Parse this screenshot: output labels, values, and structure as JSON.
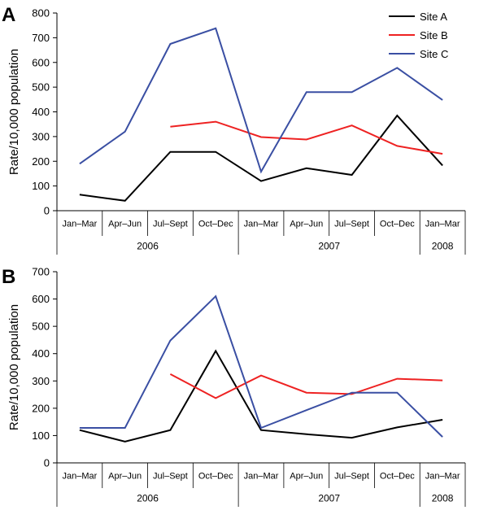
{
  "chart_data": [
    {
      "panel": "A",
      "type": "line",
      "ylabel": "Rate/10,000 population",
      "ylim": [
        0,
        800
      ],
      "yticks": [
        0,
        100,
        200,
        300,
        400,
        500,
        600,
        700,
        800
      ],
      "categories": [
        "Jan–Mar",
        "Apr–Jun",
        "Jul–Sept",
        "Oct–Dec",
        "Jan–Mar",
        "Apr–Jun",
        "Jul–Sept",
        "Oct–Dec",
        "Jan–Mar"
      ],
      "year_groups": [
        {
          "label": "2006",
          "count": 4
        },
        {
          "label": "2007",
          "count": 4
        },
        {
          "label": "2008",
          "count": 1
        }
      ],
      "legend": {
        "position": "top-right"
      },
      "series": [
        {
          "name": "Site A",
          "color": "#000000",
          "values": [
            65,
            40,
            238,
            238,
            120,
            172,
            145,
            385,
            183
          ]
        },
        {
          "name": "Site B",
          "color": "#ee2222",
          "values": [
            null,
            null,
            340,
            360,
            298,
            288,
            345,
            262,
            230
          ]
        },
        {
          "name": "Site C",
          "color": "#3a4fa3",
          "values": [
            190,
            320,
            675,
            738,
            158,
            480,
            480,
            578,
            448
          ]
        }
      ]
    },
    {
      "panel": "B",
      "type": "line",
      "ylabel": "Rate/10,000 population",
      "ylim": [
        0,
        700
      ],
      "yticks": [
        0,
        100,
        200,
        300,
        400,
        500,
        600,
        700
      ],
      "categories": [
        "Jan–Mar",
        "Apr–Jun",
        "Jul–Sept",
        "Oct–Dec",
        "Jan–Mar",
        "Apr–Jun",
        "Jul–Sept",
        "Oct–Dec",
        "Jan–Mar"
      ],
      "year_groups": [
        {
          "label": "2006",
          "count": 4
        },
        {
          "label": "2007",
          "count": 4
        },
        {
          "label": "2008",
          "count": 1
        }
      ],
      "series": [
        {
          "name": "Site A",
          "color": "#000000",
          "values": [
            120,
            78,
            120,
            410,
            120,
            105,
            92,
            130,
            158
          ]
        },
        {
          "name": "Site B",
          "color": "#ee2222",
          "values": [
            null,
            null,
            325,
            237,
            320,
            257,
            252,
            308,
            302
          ]
        },
        {
          "name": "Site C",
          "color": "#3a4fa3",
          "values": [
            128,
            128,
            448,
            610,
            128,
            193,
            257,
            257,
            95
          ]
        }
      ]
    }
  ]
}
